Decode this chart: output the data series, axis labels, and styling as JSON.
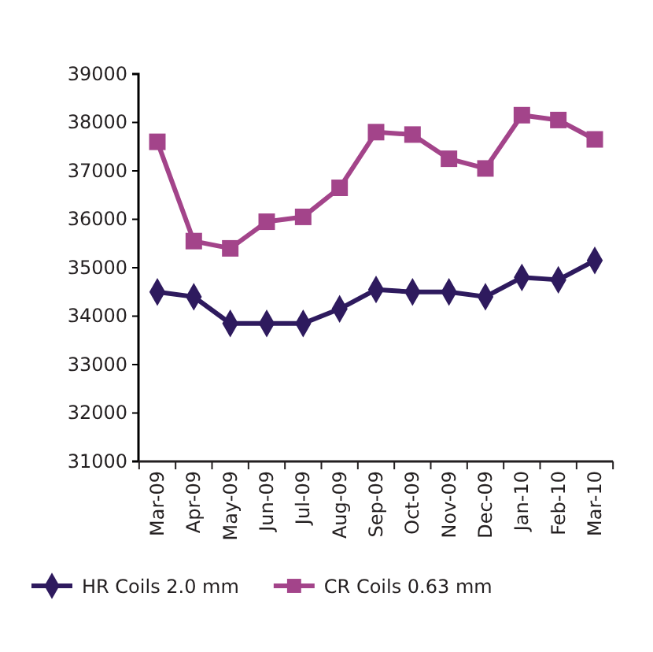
{
  "chart_data": {
    "type": "line",
    "categories": [
      "Mar-09",
      "Apr-09",
      "May-09",
      "Jun-09",
      "Jul-09",
      "Aug-09",
      "Sep-09",
      "Oct-09",
      "Nov-09",
      "Dec-09",
      "Jan-10",
      "Feb-10",
      "Mar-10"
    ],
    "series": [
      {
        "name": "HR Coils 2.0 mm",
        "color": "#2e1a5e",
        "marker": "diamond",
        "values": [
          34500,
          34400,
          33850,
          33850,
          33850,
          34150,
          34550,
          34500,
          34500,
          34400,
          34800,
          34750,
          35150
        ]
      },
      {
        "name": "CR Coils 0.63 mm",
        "color": "#a3448a",
        "marker": "square",
        "values": [
          37600,
          35550,
          35400,
          35950,
          36050,
          36650,
          37800,
          37750,
          37250,
          37050,
          38150,
          38050,
          37650
        ]
      }
    ],
    "ylim": [
      31000,
      39000
    ],
    "yticks": [
      31000,
      32000,
      33000,
      34000,
      35000,
      36000,
      37000,
      38000,
      39000
    ],
    "grid": false,
    "legend": "bottom",
    "line_style": "solid"
  }
}
